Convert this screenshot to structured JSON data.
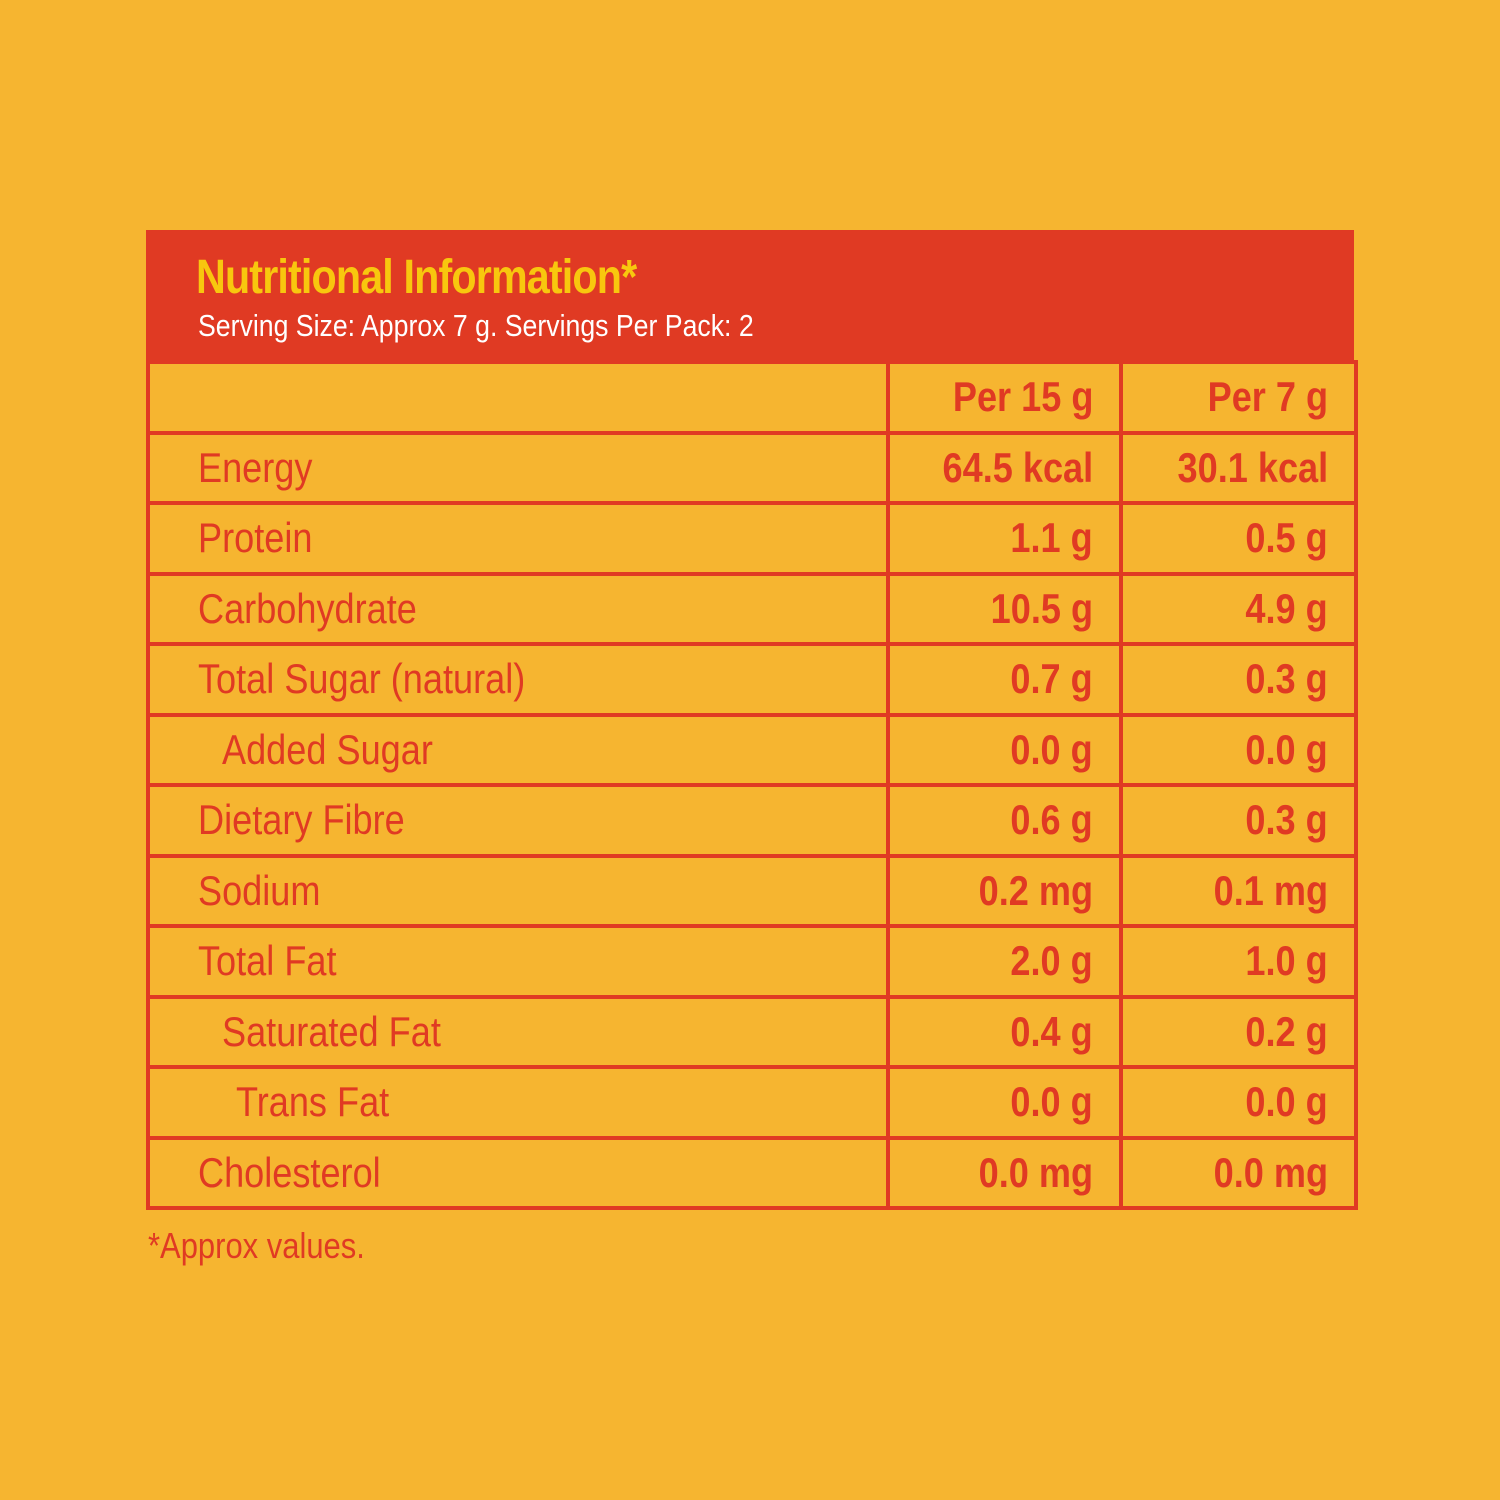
{
  "label": {
    "title": "Nutritional Information*",
    "subtitle": "Serving Size: Approx 7 g. Servings Per Pack: 2",
    "columns": [
      "",
      "Per 15 g",
      "Per 7 g"
    ],
    "rows": [
      {
        "name": "Energy",
        "indent": 0,
        "per_15g": "64.5 kcal",
        "per_7g": "30.1 kcal"
      },
      {
        "name": "Protein",
        "indent": 0,
        "per_15g": "1.1 g",
        "per_7g": "0.5 g"
      },
      {
        "name": "Carbohydrate",
        "indent": 0,
        "per_15g": "10.5 g",
        "per_7g": "4.9 g"
      },
      {
        "name": "Total Sugar (natural)",
        "indent": 0,
        "per_15g": "0.7 g",
        "per_7g": "0.3 g"
      },
      {
        "name": "Added Sugar",
        "indent": 1,
        "per_15g": "0.0 g",
        "per_7g": "0.0 g"
      },
      {
        "name": "Dietary Fibre",
        "indent": 0,
        "per_15g": "0.6 g",
        "per_7g": "0.3 g"
      },
      {
        "name": "Sodium",
        "indent": 0,
        "per_15g": "0.2 mg",
        "per_7g": "0.1 mg"
      },
      {
        "name": "Total Fat",
        "indent": 0,
        "per_15g": "2.0 g",
        "per_7g": "1.0 g"
      },
      {
        "name": "Saturated Fat",
        "indent": 1,
        "per_15g": "0.4 g",
        "per_7g": "0.2 g"
      },
      {
        "name": "Trans Fat",
        "indent": 2,
        "per_15g": "0.0 g",
        "per_7g": "0.0 g"
      },
      {
        "name": "Cholesterol",
        "indent": 0,
        "per_15g": "0.0 mg",
        "per_7g": "0.0 mg"
      }
    ],
    "footnote": "*Approx values."
  },
  "colors": {
    "background": "#F6B530",
    "accent_red": "#E03A23",
    "title_yellow": "#F8C70E",
    "subtitle_white": "#FFFFFF"
  }
}
